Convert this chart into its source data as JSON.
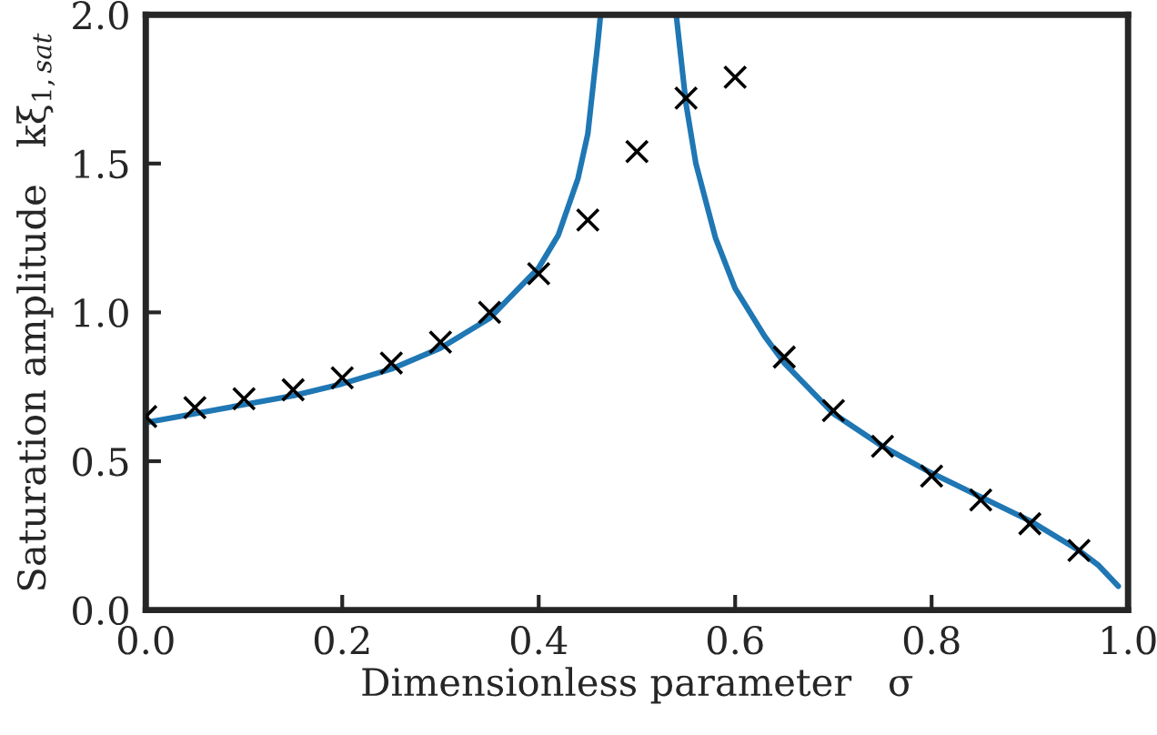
{
  "chart_data": {
    "type": "scatter",
    "xlabel": "Dimensionless parameter   σ",
    "ylabel": "Saturation amplitude   kξ$_{1,sat}$",
    "xlim": [
      0.0,
      1.0
    ],
    "ylim": [
      0.0,
      2.0
    ],
    "xticks": [
      {
        "value": 0.0,
        "label": "0.0"
      },
      0.2,
      0.4,
      0.6,
      0.8,
      {
        "value": 1.0,
        "label": "1.0"
      }
    ],
    "yticks": [
      {
        "value": 0.0,
        "label": "0.0"
      },
      0.5,
      {
        "value": 1.0,
        "label": "1.0"
      },
      1.5,
      {
        "value": 2.0,
        "label": "2.0"
      }
    ],
    "grid": false,
    "legend": false,
    "series": [
      {
        "type": "line",
        "color": "#1f77b4",
        "marker": "none",
        "line_style": "solid",
        "x": [
          0.0,
          0.05,
          0.1,
          0.15,
          0.2,
          0.25,
          0.3,
          0.35,
          0.4,
          0.42,
          0.44,
          0.45,
          0.455,
          0.46,
          0.463
        ],
        "values": [
          0.63,
          0.66,
          0.69,
          0.72,
          0.76,
          0.81,
          0.88,
          0.98,
          1.15,
          1.26,
          1.45,
          1.6,
          1.75,
          1.9,
          2.0
        ]
      },
      {
        "type": "line",
        "color": "#1f77b4",
        "marker": "none",
        "line_style": "solid",
        "x": [
          0.54,
          0.545,
          0.55,
          0.56,
          0.58,
          0.6,
          0.63,
          0.65,
          0.7,
          0.75,
          0.8,
          0.85,
          0.9,
          0.95,
          0.97,
          0.99
        ],
        "values": [
          2.0,
          1.85,
          1.7,
          1.5,
          1.25,
          1.08,
          0.92,
          0.83,
          0.66,
          0.55,
          0.46,
          0.38,
          0.3,
          0.2,
          0.15,
          0.08
        ]
      },
      {
        "type": "scatter",
        "color": "#000000",
        "marker": "cross",
        "x": [
          0.0,
          0.05,
          0.1,
          0.15,
          0.2,
          0.25,
          0.3,
          0.35,
          0.4,
          0.45,
          0.5,
          0.55,
          0.6,
          0.65,
          0.7,
          0.75,
          0.8,
          0.85,
          0.9,
          0.95
        ],
        "values": [
          0.65,
          0.68,
          0.71,
          0.74,
          0.78,
          0.83,
          0.9,
          1.0,
          1.13,
          1.31,
          1.54,
          1.72,
          1.79,
          0.85,
          0.67,
          0.55,
          0.45,
          0.37,
          0.29,
          0.2
        ]
      }
    ]
  }
}
